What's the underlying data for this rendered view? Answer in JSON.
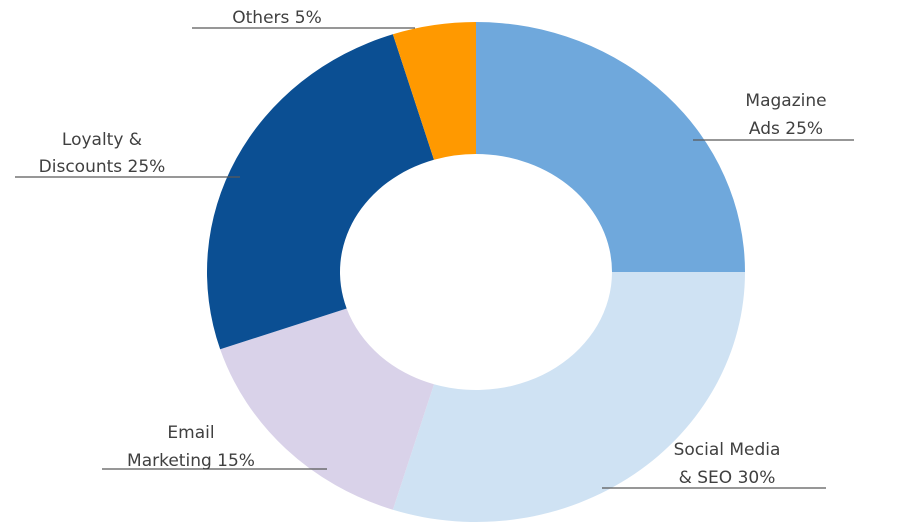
{
  "chart_data": {
    "type": "pie",
    "donut": true,
    "categories": [
      "Magazine Ads",
      "Social Media & SEO",
      "Email Marketing",
      "Loyalty & Discounts",
      "Others"
    ],
    "values": [
      25,
      30,
      15,
      25,
      5
    ],
    "unit": "%",
    "colors": [
      "#6fa8dc",
      "#cfe2f3",
      "#d9d2e9",
      "#0b4f93",
      "#ff9900"
    ],
    "labels": [
      {
        "lines": [
          "Magazine",
          "Ads  25%"
        ]
      },
      {
        "lines": [
          "Social Media",
          "& SEO 30%"
        ]
      },
      {
        "lines": [
          "Email",
          "Marketing  15%"
        ]
      },
      {
        "lines": [
          "Loyalty &",
          "Discounts 25%"
        ]
      },
      {
        "lines": [
          "Others  5%"
        ]
      }
    ],
    "legend": "none"
  }
}
